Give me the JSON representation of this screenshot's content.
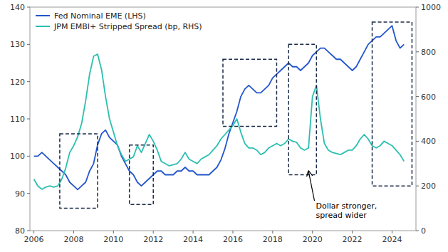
{
  "chart_data": {
    "type": "line",
    "x": [
      2006.0,
      2006.2,
      2006.4,
      2006.6,
      2006.8,
      2007.0,
      2007.2,
      2007.4,
      2007.6,
      2007.8,
      2008.0,
      2008.2,
      2008.4,
      2008.6,
      2008.8,
      2009.0,
      2009.2,
      2009.4,
      2009.6,
      2009.8,
      2010.0,
      2010.2,
      2010.4,
      2010.6,
      2010.8,
      2011.0,
      2011.2,
      2011.4,
      2011.6,
      2011.8,
      2012.0,
      2012.2,
      2012.4,
      2012.6,
      2012.8,
      2013.0,
      2013.2,
      2013.4,
      2013.6,
      2013.8,
      2014.0,
      2014.2,
      2014.4,
      2014.6,
      2014.8,
      2015.0,
      2015.2,
      2015.4,
      2015.6,
      2015.8,
      2016.0,
      2016.2,
      2016.4,
      2016.6,
      2016.8,
      2017.0,
      2017.2,
      2017.4,
      2017.6,
      2017.8,
      2018.0,
      2018.2,
      2018.4,
      2018.6,
      2018.8,
      2019.0,
      2019.2,
      2019.4,
      2019.6,
      2019.8,
      2020.0,
      2020.2,
      2020.4,
      2020.6,
      2020.8,
      2021.0,
      2021.2,
      2021.4,
      2021.6,
      2021.8,
      2022.0,
      2022.2,
      2022.4,
      2022.6,
      2022.8,
      2023.0,
      2023.2,
      2023.4,
      2023.6,
      2023.8,
      2024.0,
      2024.2,
      2024.4,
      2024.6
    ],
    "series": [
      {
        "name": "Fed Nominal EME (LHS)",
        "color": "#2255cc",
        "values": [
          100,
          100,
          101,
          100,
          99,
          98,
          97,
          96,
          95,
          93,
          92,
          91,
          92,
          93,
          96,
          98,
          103,
          106,
          107,
          105,
          104,
          103,
          100,
          98,
          96,
          95,
          93,
          92,
          93,
          94,
          95,
          96,
          96,
          95,
          95,
          95,
          96,
          96,
          97,
          96,
          96,
          95,
          95,
          95,
          95,
          96,
          97,
          99,
          102,
          106,
          109,
          112,
          116,
          118,
          119,
          118,
          117,
          117,
          118,
          119,
          121,
          122,
          123,
          124,
          125,
          124,
          124,
          123,
          124,
          125,
          127,
          128,
          129,
          129,
          128,
          127,
          126,
          126,
          125,
          124,
          123,
          124,
          126,
          128,
          130,
          131,
          132,
          132,
          133,
          134,
          135,
          131,
          129,
          130
        ]
      },
      {
        "name": "JPM EMBI+ Stripped Spread (bp, RHS)",
        "color": "#2bbfb0",
        "axis": "y2",
        "values": [
          230,
          200,
          185,
          195,
          200,
          195,
          200,
          230,
          280,
          350,
          380,
          420,
          480,
          580,
          700,
          780,
          790,
          720,
          600,
          500,
          440,
          380,
          340,
          310,
          320,
          330,
          380,
          350,
          390,
          430,
          400,
          360,
          310,
          300,
          290,
          295,
          300,
          320,
          350,
          320,
          310,
          300,
          320,
          330,
          340,
          360,
          380,
          410,
          430,
          450,
          470,
          500,
          440,
          390,
          370,
          370,
          360,
          340,
          350,
          370,
          380,
          390,
          380,
          390,
          410,
          400,
          395,
          370,
          360,
          370,
          600,
          650,
          500,
          390,
          360,
          350,
          345,
          340,
          350,
          360,
          360,
          380,
          410,
          430,
          410,
          380,
          370,
          380,
          400,
          390,
          380,
          360,
          340,
          310
        ]
      }
    ],
    "xlim": [
      2005.8,
      2025.2
    ],
    "xticks": [
      2006,
      2008,
      2010,
      2012,
      2014,
      2016,
      2018,
      2020,
      2022,
      2024
    ],
    "ylim": [
      80,
      140
    ],
    "yticks": [
      80,
      90,
      100,
      110,
      120,
      130,
      140
    ],
    "y2lim": [
      0,
      1000
    ],
    "y2ticks": [
      0,
      200,
      400,
      600,
      800,
      1000
    ],
    "boxes": [
      {
        "x0": 2007.3,
        "x1": 2009.2,
        "y0": 86,
        "y1": 106,
        "color": "#1a2b4a"
      },
      {
        "x0": 2010.8,
        "x1": 2012.0,
        "y0": 87,
        "y1": 103,
        "color": "#1a2b4a"
      },
      {
        "x0": 2015.5,
        "x1": 2018.2,
        "y0": 108,
        "y1": 126,
        "color": "#1a2b4a"
      },
      {
        "x0": 2018.8,
        "x1": 2020.2,
        "y0": 95,
        "y1": 130,
        "color": "#1a2b4a"
      },
      {
        "x0": 2023.0,
        "x1": 2025.0,
        "y0": 92,
        "y1": 136,
        "color": "#1a2b4a"
      }
    ],
    "annotations": [
      {
        "text": "Dollar stronger,\nspread wider",
        "x": 2019.8,
        "y": 96,
        "text_x": 2020.1,
        "text_y": 88
      }
    ],
    "legend": "upper left",
    "grid": false
  }
}
